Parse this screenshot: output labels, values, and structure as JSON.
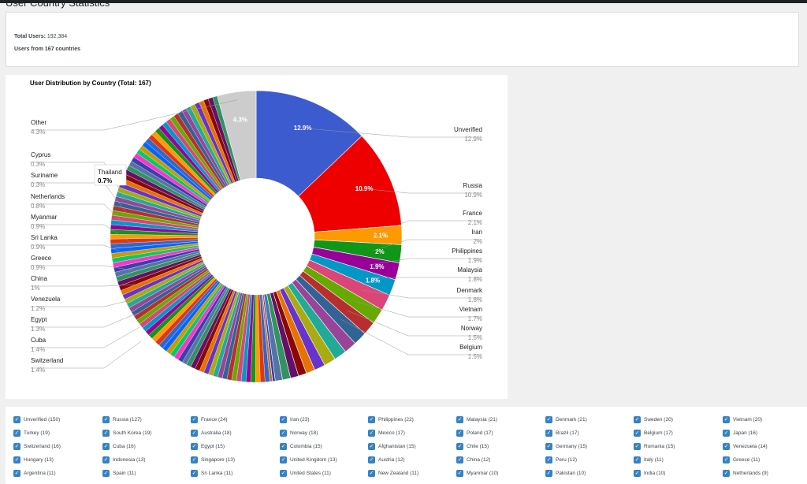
{
  "page": {
    "title": "User Country Statistics"
  },
  "summary": {
    "total_users_label": "Total Users:",
    "total_users_value": "192,384",
    "countries_line": "Users from 167 countries"
  },
  "colors": {
    "checkbox": "#3582c4",
    "other_slice": "#cccccc"
  },
  "chart_data": {
    "type": "pie",
    "donut": true,
    "title": "User Distribution by Country (Total: 167)",
    "tooltip": {
      "label": "Thailand",
      "value": "0.7%"
    },
    "labeled_slices": [
      {
        "label": "Unverified",
        "value": 12.9,
        "display": "12.9%",
        "color": "#3b5bcf"
      },
      {
        "label": "Russia",
        "value": 10.9,
        "display": "10.9%",
        "color": "#ee0000"
      },
      {
        "label": "France",
        "value": 2.1,
        "display": "2.1%",
        "color": "#ff9900"
      },
      {
        "label": "Iran",
        "value": 2.0,
        "display": "2%",
        "color": "#109618"
      },
      {
        "label": "Philippines",
        "value": 1.9,
        "display": "1.9%",
        "color": "#990099"
      },
      {
        "label": "Malaysia",
        "value": 1.8,
        "display": "1.8%",
        "color": "#0099c6"
      },
      {
        "label": "Denmark",
        "value": 1.8,
        "display": "1.8%",
        "color": "#dd4477"
      },
      {
        "label": "Vietnam",
        "value": 1.7,
        "display": "1.7%",
        "color": "#66aa00"
      },
      {
        "label": "Norway",
        "value": 1.5,
        "display": "1.5%",
        "color": "#b82e2e"
      },
      {
        "label": "Belgium",
        "value": 1.5,
        "display": "1.5%",
        "color": "#316395"
      },
      {
        "label": "Switzerland",
        "value": 1.4,
        "display": "1.4%",
        "color": "#994499"
      },
      {
        "label": "Cuba",
        "value": 1.4,
        "display": "1.4%",
        "color": "#22aa99"
      },
      {
        "label": "Egypt",
        "value": 1.3,
        "display": "1.3%",
        "color": "#aaaa11"
      },
      {
        "label": "Venezuela",
        "value": 1.2,
        "display": "1.2%",
        "color": "#6633cc"
      },
      {
        "label": "China",
        "value": 1.0,
        "display": "1%",
        "color": "#e67300"
      },
      {
        "label": "Greece",
        "value": 0.9,
        "display": "0.9%",
        "color": "#8b0707"
      },
      {
        "label": "Sri Lanka",
        "value": 0.9,
        "display": "0.9%",
        "color": "#651067"
      },
      {
        "label": "Myanmar",
        "value": 0.9,
        "display": "0.9%",
        "color": "#329262"
      },
      {
        "label": "Netherlands",
        "value": 0.8,
        "display": "0.8%",
        "color": "#5574a6"
      },
      {
        "label": "Suriname",
        "value": 0.3,
        "display": "0.3%",
        "color": "#3b3eac"
      },
      {
        "label": "Cyprus",
        "value": 0.3,
        "display": "0.3%",
        "color": "#b77322"
      },
      {
        "label": "Other",
        "value": 4.3,
        "display": "4.3%",
        "color": "#cccccc"
      }
    ],
    "in_slice_labels": [
      "12.9%",
      "10.9%",
      "2.1%",
      "2%",
      "1.9%",
      "1.8%",
      "4.3%"
    ],
    "unlabeled_slice_palette": [
      "#3366cc",
      "#dc3912",
      "#ff9900",
      "#109618",
      "#990099",
      "#0099c6",
      "#dd4477",
      "#66aa00",
      "#b82e2e",
      "#316395",
      "#994499",
      "#22aa99",
      "#aaaa11",
      "#6633cc",
      "#e67300",
      "#8b0707",
      "#651067",
      "#329262",
      "#5574a6",
      "#3b3eac",
      "#ff33cc",
      "#00cc66",
      "#cc9900",
      "#0066ff"
    ]
  },
  "country_filters": [
    [
      "Unverified (150)",
      "Russia (127)",
      "France (24)",
      "Iran (23)",
      "Philippines (22)",
      "Malaysia (21)",
      "Denmark (21)",
      "Sweden (20)",
      "Vietnam (20)"
    ],
    [
      "Turkey (19)",
      "South Korea (19)",
      "Australia (18)",
      "Norway (18)",
      "Mexico (17)",
      "Poland (17)",
      "Brazil (17)",
      "Belgium (17)",
      "Japan (16)"
    ],
    [
      "Switzerland (16)",
      "Cuba (16)",
      "Egypt (15)",
      "Colombia (15)",
      "Afghanistan (15)",
      "Chile (15)",
      "Germany (15)",
      "Romania (15)",
      "Venezuela (14)"
    ],
    [
      "Hungary (13)",
      "Indonesia (13)",
      "Singapore (13)",
      "United Kingdom (13)",
      "Austria (12)",
      "China (12)",
      "Peru (12)",
      "Italy (11)",
      "Greece (11)"
    ],
    [
      "Argentina (11)",
      "Spain (11)",
      "Sri Lanka (11)",
      "United States (11)",
      "New Zealand (11)",
      "Myanmar (10)",
      "Pakistan (10)",
      "India (10)",
      "Netherlands (9)"
    ]
  ]
}
